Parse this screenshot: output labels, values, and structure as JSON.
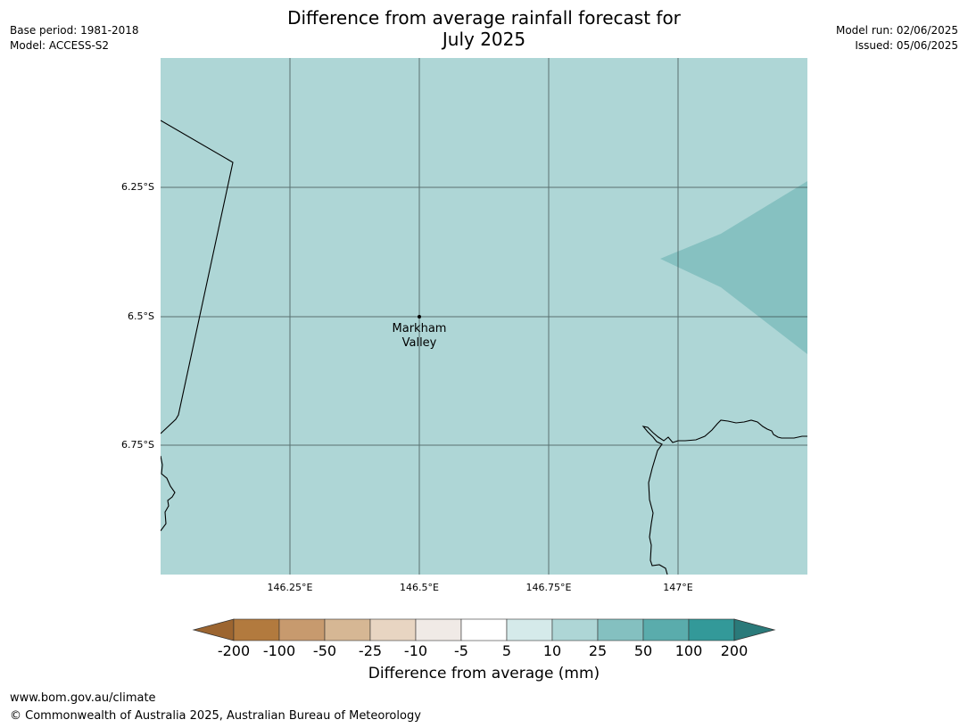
{
  "header": {
    "title_line1": "Difference from average rainfall forecast for",
    "title_line2": "July 2025",
    "base_period": "Base period: 1981-2018",
    "model": "Model: ACCESS-S2",
    "model_run": "Model run: 02/06/2025",
    "issued": "Issued: 05/06/2025"
  },
  "map": {
    "lat_labels": [
      "6.25°S",
      "6.5°S",
      "6.75°S"
    ],
    "lon_labels": [
      "146.25°E",
      "146.5°E",
      "146.75°E",
      "147°E"
    ],
    "place": {
      "name_line1": "Markham",
      "name_line2": "Valley"
    },
    "colors": {
      "background_class": "#aed6d6",
      "higher_class": "#84c0c0",
      "gridline": "#3d4f4f",
      "coast": "#000000"
    }
  },
  "colorbar": {
    "labels": [
      "-200",
      "-100",
      "-50",
      "-25",
      "-10",
      "-5",
      "5",
      "10",
      "25",
      "50",
      "100",
      "200"
    ],
    "colors": [
      "#9c6530",
      "#b27a3e",
      "#c79a6e",
      "#d6b794",
      "#e8d5c2",
      "#f0eae6",
      "#ffffff",
      "#d5eaea",
      "#aed6d6",
      "#84c0c0",
      "#5aacac",
      "#339999",
      "#2a7a7a"
    ],
    "title": "Difference from average (mm)"
  },
  "footer": {
    "url": "www.bom.gov.au/climate",
    "copyright": "© Commonwealth of Australia 2025, Australian Bureau of Meteorology"
  }
}
